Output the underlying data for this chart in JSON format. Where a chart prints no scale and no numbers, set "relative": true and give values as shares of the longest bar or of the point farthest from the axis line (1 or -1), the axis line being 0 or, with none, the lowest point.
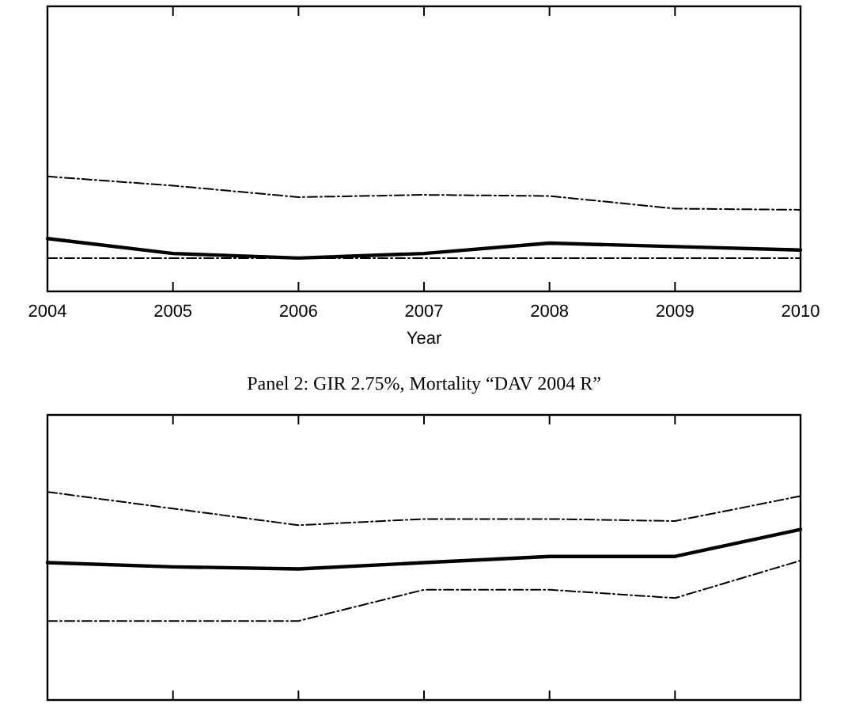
{
  "chart_data": [
    {
      "type": "line",
      "relative": true,
      "xlabel": "Year",
      "categories": [
        "2004",
        "2005",
        "2006",
        "2007",
        "2008",
        "2009",
        "2010"
      ],
      "series": [
        {
          "color": "#000000",
          "line_style": "dashed",
          "values": [
            1,
            0.92,
            0.82,
            0.84,
            0.83,
            0.72,
            0.71
          ]
        },
        {
          "color": "#000000",
          "line_style": "solid",
          "values": [
            0.46,
            0.33,
            0.29,
            0.33,
            0.42,
            0.39,
            0.36
          ]
        },
        {
          "color": "#000000",
          "line_style": "dashed",
          "values": [
            0.29,
            0.29,
            0.29,
            0.29,
            0.29,
            0.29,
            0.29
          ]
        }
      ]
    },
    {
      "type": "line",
      "relative": true,
      "title": "Panel 2: GIR 2.75%, Mortality “DAV 2004 R”",
      "categories": [
        null,
        null,
        null,
        null,
        null,
        null,
        null
      ],
      "series": [
        {
          "color": "#000000",
          "line_style": "dashed",
          "values": [
            1,
            0.92,
            0.84,
            0.87,
            0.87,
            0.86,
            0.98
          ]
        },
        {
          "color": "#000000",
          "line_style": "solid",
          "values": [
            0.66,
            0.64,
            0.63,
            0.66,
            0.69,
            0.69,
            0.82
          ]
        },
        {
          "color": "#000000",
          "line_style": "dashed",
          "values": [
            0.38,
            0.38,
            0.38,
            0.53,
            0.53,
            0.49,
            0.67
          ]
        }
      ]
    }
  ]
}
